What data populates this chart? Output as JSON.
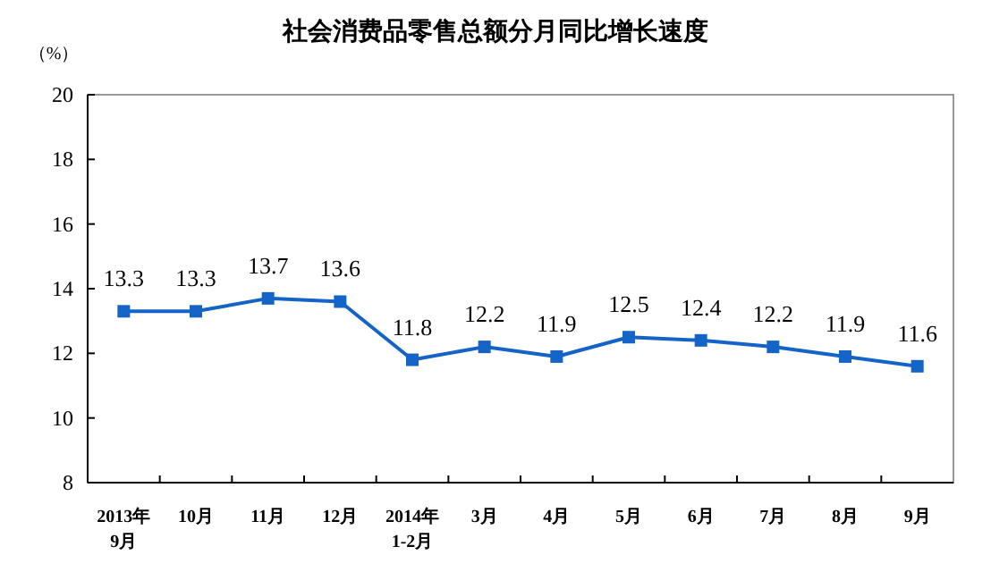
{
  "chart_data": {
    "type": "line",
    "title": "社会消费品零售总额分月同比增长速度",
    "ylabel": "（%）",
    "categories": [
      "2013年\n9月",
      "10月",
      "11月",
      "12月",
      "2014年\n1-2月",
      "3月",
      "4月",
      "5月",
      "6月",
      "7月",
      "8月",
      "9月"
    ],
    "values": [
      13.3,
      13.3,
      13.7,
      13.6,
      11.8,
      12.2,
      11.9,
      12.5,
      12.4,
      12.2,
      11.9,
      11.6
    ],
    "color": "#1464c8",
    "marker": "square",
    "line_style": "solid",
    "data_labels": true,
    "grid": false,
    "ylim": [
      8,
      20
    ],
    "yticks": [
      8,
      10,
      12,
      14,
      16,
      18,
      20
    ]
  }
}
